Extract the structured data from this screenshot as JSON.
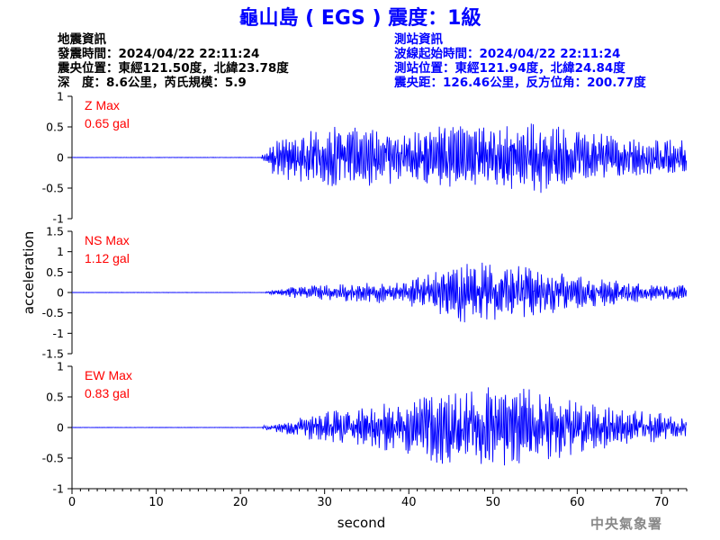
{
  "title": "龜山島 ( EGS ) 震度：1級",
  "earthquake_info": {
    "heading": "地震資訊",
    "time": "發震時間：2024/04/22 22:11:24",
    "epicenter": "震央位置：東經121.50度，北緯23.78度",
    "depth_magnitude": "深　度：8.6公里，芮氏規模：5.9"
  },
  "station_info": {
    "heading": "測站資訊",
    "wave_start": "波線起始時間：2024/04/22 22:11:24",
    "station_location": "測站位置：東經121.94度，北緯24.84度",
    "distance_azimuth": "震央距：126.46公里，反方位角：200.77度"
  },
  "watermark": "中央氣象署",
  "colors": {
    "title": "#0000ff",
    "trace": "#0000ff",
    "max_label": "#ff0000",
    "axis": "#000000"
  },
  "chart_data": {
    "type": "line",
    "xlabel": "second",
    "ylabel": "acceleration",
    "xlim": [
      0,
      73
    ],
    "xticks": [
      0,
      10,
      20,
      30,
      40,
      50,
      60,
      70
    ],
    "panels": [
      {
        "name": "Z",
        "max_label": "Z Max",
        "max_value": "0.65 gal",
        "ylim": [
          -1,
          1
        ],
        "yticks": [
          -1,
          -0.5,
          0,
          0.5,
          1
        ],
        "onset": 22.5,
        "envelope": [
          [
            22.5,
            0.05
          ],
          [
            24,
            0.3
          ],
          [
            27,
            0.45
          ],
          [
            30,
            0.55
          ],
          [
            35,
            0.5
          ],
          [
            40,
            0.45
          ],
          [
            45,
            0.55
          ],
          [
            50,
            0.55
          ],
          [
            55,
            0.6
          ],
          [
            60,
            0.45
          ],
          [
            65,
            0.35
          ],
          [
            70,
            0.3
          ],
          [
            73,
            0.3
          ]
        ]
      },
      {
        "name": "NS",
        "max_label": "NS Max",
        "max_value": "1.12 gal",
        "ylim": [
          -1.5,
          1.5
        ],
        "yticks": [
          -1.5,
          -1,
          -0.5,
          0,
          0.5,
          1,
          1.5
        ],
        "onset": 23,
        "envelope": [
          [
            23,
            0.02
          ],
          [
            26,
            0.15
          ],
          [
            30,
            0.2
          ],
          [
            35,
            0.25
          ],
          [
            40,
            0.35
          ],
          [
            43,
            0.55
          ],
          [
            46,
            0.75
          ],
          [
            50,
            0.85
          ],
          [
            55,
            0.6
          ],
          [
            60,
            0.45
          ],
          [
            65,
            0.3
          ],
          [
            70,
            0.2
          ],
          [
            73,
            0.2
          ]
        ]
      },
      {
        "name": "EW",
        "max_label": "EW Max",
        "max_value": "0.83 gal",
        "ylim": [
          -1,
          1
        ],
        "yticks": [
          -1,
          -0.5,
          0,
          0.5,
          1
        ],
        "onset": 22.5,
        "envelope": [
          [
            22.5,
            0.03
          ],
          [
            25,
            0.1
          ],
          [
            28,
            0.2
          ],
          [
            32,
            0.3
          ],
          [
            36,
            0.35
          ],
          [
            40,
            0.5
          ],
          [
            44,
            0.65
          ],
          [
            48,
            0.7
          ],
          [
            52,
            0.7
          ],
          [
            56,
            0.6
          ],
          [
            60,
            0.45
          ],
          [
            65,
            0.35
          ],
          [
            70,
            0.25
          ],
          [
            73,
            0.15
          ]
        ]
      }
    ]
  }
}
